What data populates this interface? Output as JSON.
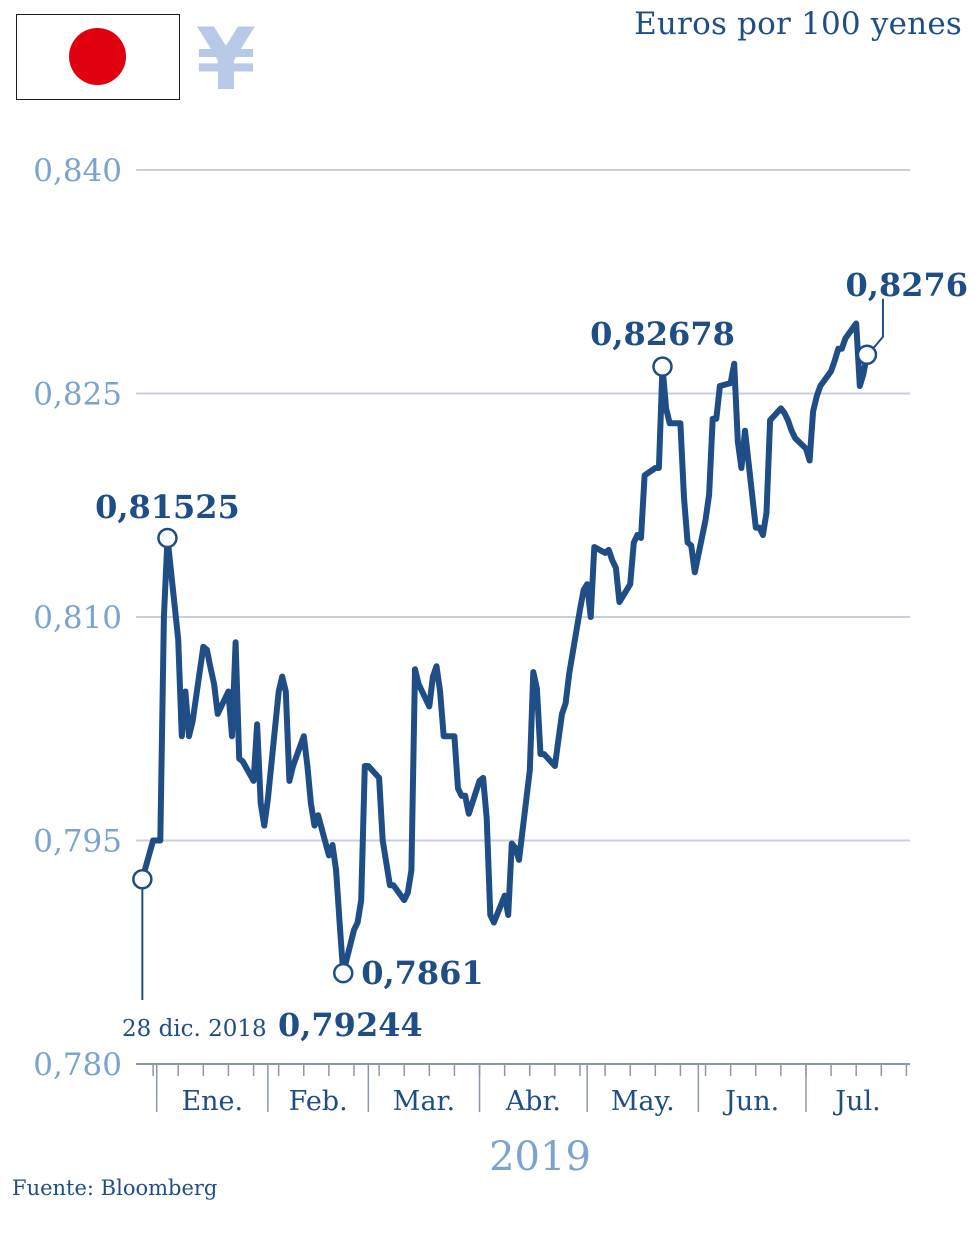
{
  "header": {
    "unit_label": "Euros por 100 yenes",
    "flag_icon": "japan-flag-icon",
    "currency_icon": "yen-icon",
    "currency_symbol": "¥"
  },
  "footer": {
    "source": "Fuente: Bloomberg"
  },
  "colors": {
    "line": "#1f4e86",
    "axis_text": "#7aa3cf",
    "grid": "#c9cfe0",
    "flag_red": "#e0000f",
    "yen_symbol": "#b7c9e6"
  },
  "chart_data": {
    "type": "line",
    "title": "",
    "xlabel": "2019",
    "ylabel": "Euros por 100 yenes",
    "ylim": [
      0.78,
      0.84
    ],
    "yticks": [
      0.78,
      0.795,
      0.81,
      0.825,
      0.84
    ],
    "ytick_labels": [
      "0,780",
      "0,795",
      "0,810",
      "0,825",
      "0,840"
    ],
    "xlim": [
      "2018-12-24",
      "2019-07-30"
    ],
    "xtick_labels": [
      "Ene.",
      "Feb.",
      "Mar.",
      "Abr.",
      "May.",
      "Jun.",
      "Jul."
    ],
    "grid": true,
    "series": [
      {
        "points": [
          [
            "2018-12-28",
            0.7924
          ],
          [
            "2018-12-31",
            0.795
          ],
          [
            "2019-01-01",
            0.795
          ],
          [
            "2019-01-02",
            0.795
          ],
          [
            "2019-01-03",
            0.81
          ],
          [
            "2019-01-04",
            0.8153
          ],
          [
            "2019-01-07",
            0.8085
          ],
          [
            "2019-01-08",
            0.802
          ],
          [
            "2019-01-09",
            0.805
          ],
          [
            "2019-01-10",
            0.802
          ],
          [
            "2019-01-11",
            0.803
          ],
          [
            "2019-01-14",
            0.808
          ],
          [
            "2019-01-15",
            0.8078
          ],
          [
            "2019-01-16",
            0.8066
          ],
          [
            "2019-01-17",
            0.8055
          ],
          [
            "2019-01-18",
            0.8035
          ],
          [
            "2019-01-21",
            0.805
          ],
          [
            "2019-01-22",
            0.802
          ],
          [
            "2019-01-23",
            0.8083
          ],
          [
            "2019-01-24",
            0.8005
          ],
          [
            "2019-01-25",
            0.8003
          ],
          [
            "2019-01-28",
            0.799
          ],
          [
            "2019-01-29",
            0.8028
          ],
          [
            "2019-01-30",
            0.7975
          ],
          [
            "2019-01-31",
            0.796
          ],
          [
            "2019-02-01",
            0.7978
          ],
          [
            "2019-02-04",
            0.805
          ],
          [
            "2019-02-05",
            0.806
          ],
          [
            "2019-02-06",
            0.805
          ],
          [
            "2019-02-07",
            0.799
          ],
          [
            "2019-02-08",
            0.8
          ],
          [
            "2019-02-11",
            0.802
          ],
          [
            "2019-02-12",
            0.8
          ],
          [
            "2019-02-13",
            0.7975
          ],
          [
            "2019-02-14",
            0.796
          ],
          [
            "2019-02-15",
            0.7967
          ],
          [
            "2019-02-18",
            0.794
          ],
          [
            "2019-02-19",
            0.7947
          ],
          [
            "2019-02-20",
            0.793
          ],
          [
            "2019-02-21",
            0.7895
          ],
          [
            "2019-02-22",
            0.7861
          ],
          [
            "2019-02-25",
            0.789
          ],
          [
            "2019-02-26",
            0.7895
          ],
          [
            "2019-02-27",
            0.791
          ],
          [
            "2019-02-28",
            0.8
          ],
          [
            "2019-03-01",
            0.8
          ],
          [
            "2019-03-04",
            0.7992
          ],
          [
            "2019-03-05",
            0.795
          ],
          [
            "2019-03-06",
            0.7935
          ],
          [
            "2019-03-07",
            0.792
          ],
          [
            "2019-03-08",
            0.792
          ],
          [
            "2019-03-11",
            0.791
          ],
          [
            "2019-03-12",
            0.7915
          ],
          [
            "2019-03-13",
            0.793
          ],
          [
            "2019-03-14",
            0.8065
          ],
          [
            "2019-03-15",
            0.8055
          ],
          [
            "2019-03-18",
            0.804
          ],
          [
            "2019-03-19",
            0.806
          ],
          [
            "2019-03-20",
            0.8067
          ],
          [
            "2019-03-21",
            0.805
          ],
          [
            "2019-03-22",
            0.802
          ],
          [
            "2019-03-25",
            0.802
          ],
          [
            "2019-03-26",
            0.7985
          ],
          [
            "2019-03-27",
            0.798
          ],
          [
            "2019-03-28",
            0.798
          ],
          [
            "2019-03-29",
            0.7968
          ],
          [
            "2019-04-01",
            0.799
          ],
          [
            "2019-04-02",
            0.7992
          ],
          [
            "2019-04-03",
            0.7965
          ],
          [
            "2019-04-04",
            0.79
          ],
          [
            "2019-04-05",
            0.7895
          ],
          [
            "2019-04-08",
            0.7913
          ],
          [
            "2019-04-09",
            0.79
          ],
          [
            "2019-04-10",
            0.7948
          ],
          [
            "2019-04-11",
            0.7945
          ],
          [
            "2019-04-12",
            0.7937
          ],
          [
            "2019-04-15",
            0.7997
          ],
          [
            "2019-04-16",
            0.8063
          ],
          [
            "2019-04-17",
            0.8052
          ],
          [
            "2019-04-18",
            0.8008
          ],
          [
            "2019-04-19",
            0.8008
          ],
          [
            "2019-04-22",
            0.8
          ],
          [
            "2019-04-23",
            0.8018
          ],
          [
            "2019-04-24",
            0.8035
          ],
          [
            "2019-04-25",
            0.8042
          ],
          [
            "2019-04-26",
            0.8062
          ],
          [
            "2019-04-29",
            0.8105
          ],
          [
            "2019-04-30",
            0.8118
          ],
          [
            "2019-05-01",
            0.8122
          ],
          [
            "2019-05-02",
            0.81
          ],
          [
            "2019-05-03",
            0.8147
          ],
          [
            "2019-05-06",
            0.8143
          ],
          [
            "2019-05-07",
            0.8145
          ],
          [
            "2019-05-08",
            0.8138
          ],
          [
            "2019-05-09",
            0.8133
          ],
          [
            "2019-05-10",
            0.811
          ],
          [
            "2019-05-13",
            0.8122
          ],
          [
            "2019-05-14",
            0.815
          ],
          [
            "2019-05-15",
            0.8155
          ],
          [
            "2019-05-16",
            0.8153
          ],
          [
            "2019-05-17",
            0.8195
          ],
          [
            "2019-05-20",
            0.82
          ],
          [
            "2019-05-21",
            0.82
          ],
          [
            "2019-05-22",
            0.8268
          ],
          [
            "2019-05-23",
            0.824
          ],
          [
            "2019-05-24",
            0.823
          ],
          [
            "2019-05-27",
            0.823
          ],
          [
            "2019-05-28",
            0.818
          ],
          [
            "2019-05-29",
            0.815
          ],
          [
            "2019-05-30",
            0.8148
          ],
          [
            "2019-05-31",
            0.813
          ],
          [
            "2019-06-03",
            0.8165
          ],
          [
            "2019-06-04",
            0.8182
          ],
          [
            "2019-06-05",
            0.8233
          ],
          [
            "2019-06-06",
            0.8233
          ],
          [
            "2019-06-07",
            0.8255
          ],
          [
            "2019-06-10",
            0.8257
          ],
          [
            "2019-06-11",
            0.827
          ],
          [
            "2019-06-12",
            0.8218
          ],
          [
            "2019-06-13",
            0.82
          ],
          [
            "2019-06-14",
            0.8225
          ],
          [
            "2019-06-17",
            0.816
          ],
          [
            "2019-06-18",
            0.816
          ],
          [
            "2019-06-19",
            0.8155
          ],
          [
            "2019-06-20",
            0.817
          ],
          [
            "2019-06-21",
            0.8232
          ],
          [
            "2019-06-24",
            0.824
          ],
          [
            "2019-06-25",
            0.8237
          ],
          [
            "2019-06-26",
            0.8232
          ],
          [
            "2019-06-27",
            0.8225
          ],
          [
            "2019-06-28",
            0.822
          ],
          [
            "2019-07-01",
            0.8213
          ],
          [
            "2019-07-02",
            0.8205
          ],
          [
            "2019-07-03",
            0.8238
          ],
          [
            "2019-07-04",
            0.8248
          ],
          [
            "2019-07-05",
            0.8255
          ],
          [
            "2019-07-08",
            0.8265
          ],
          [
            "2019-07-09",
            0.8272
          ],
          [
            "2019-07-10",
            0.828
          ],
          [
            "2019-07-11",
            0.828
          ],
          [
            "2019-07-12",
            0.8287
          ],
          [
            "2019-07-15",
            0.8297
          ],
          [
            "2019-07-16",
            0.8255
          ],
          [
            "2019-07-17",
            0.8263
          ],
          [
            "2019-07-18",
            0.8276
          ]
        ]
      }
    ],
    "annotations": [
      {
        "label": "0,79244",
        "date": "2018-12-28",
        "value": 0.7924,
        "prefix": "28 dic. 2018"
      },
      {
        "label": "0,81525",
        "date": "2019-01-04",
        "value": 0.8153
      },
      {
        "label": "0,7861",
        "date": "2019-02-22",
        "value": 0.7861
      },
      {
        "label": "0,82678",
        "date": "2019-05-22",
        "value": 0.8268
      },
      {
        "label": "0,8276",
        "date": "2019-07-18",
        "value": 0.8276
      }
    ]
  }
}
